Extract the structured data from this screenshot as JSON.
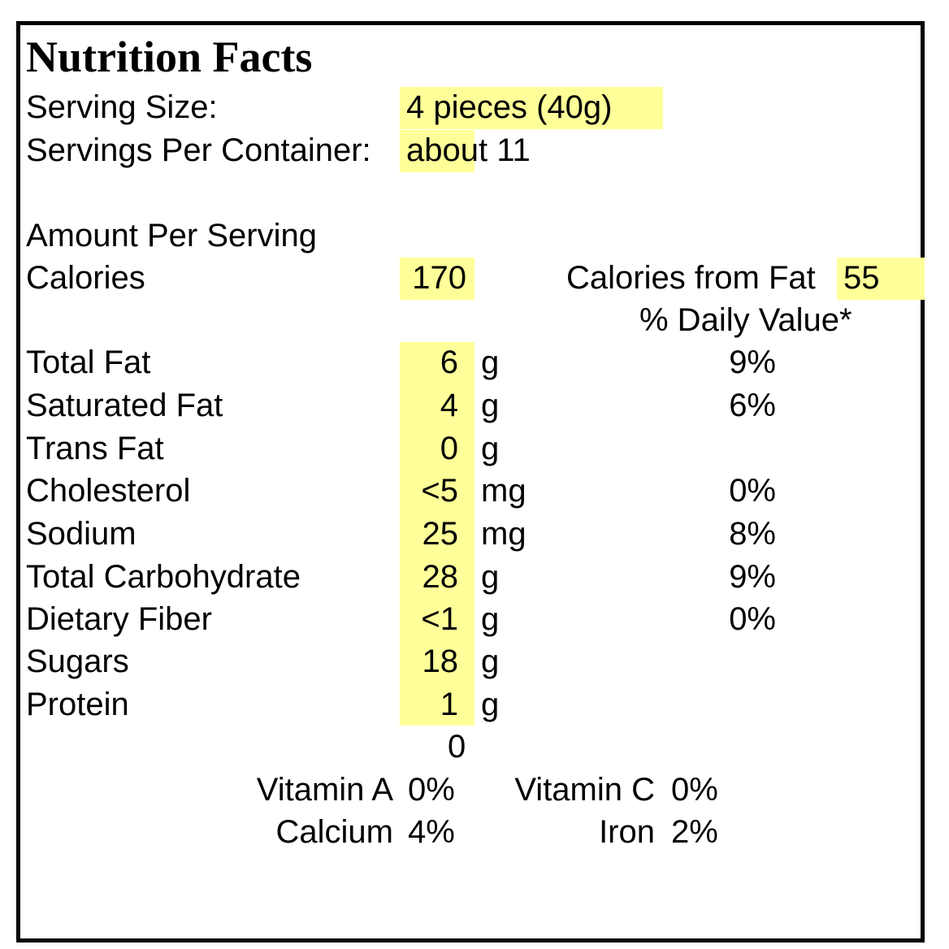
{
  "title": "Nutrition Facts",
  "serving": {
    "size_label": "Serving Size:",
    "size_value": "4 pieces (40g)",
    "per_container_label": "Servings Per Container:",
    "per_container_value": "about 11"
  },
  "amount_per_serving": "Amount Per Serving",
  "calories": {
    "label": "Calories",
    "value": "170",
    "from_fat_label": "Calories from Fat",
    "from_fat_value": "55"
  },
  "daily_value_header": "% Daily Value*",
  "nutrients": [
    {
      "name": "Total Fat",
      "amount": "6",
      "unit": "g",
      "dv": "9%"
    },
    {
      "name": "Saturated Fat",
      "amount": "4",
      "unit": "g",
      "dv": "6%"
    },
    {
      "name": "Trans Fat",
      "amount": "0",
      "unit": "g",
      "dv": ""
    },
    {
      "name": "Cholesterol",
      "amount": "<5",
      "unit": "mg",
      "dv": "0%"
    },
    {
      "name": "Sodium",
      "amount": "25",
      "unit": "mg",
      "dv": "8%"
    },
    {
      "name": "Total Carbohydrate",
      "amount": "28",
      "unit": "g",
      "dv": "9%"
    },
    {
      "name": "Dietary Fiber",
      "amount": "<1",
      "unit": "g",
      "dv": "0%"
    },
    {
      "name": "Sugars",
      "amount": "18",
      "unit": "g",
      "dv": ""
    },
    {
      "name": "Protein",
      "amount": "1",
      "unit": "g",
      "dv": ""
    }
  ],
  "stray_value": "0",
  "vitamins": [
    {
      "name": "Vitamin A",
      "dv": "0%"
    },
    {
      "name": "Vitamin C",
      "dv": "0%"
    },
    {
      "name": "Calcium",
      "dv": "4%"
    },
    {
      "name": "Iron",
      "dv": "2%"
    }
  ],
  "colors": {
    "highlight": "#ffff99",
    "border": "#000000",
    "text": "#000000"
  }
}
